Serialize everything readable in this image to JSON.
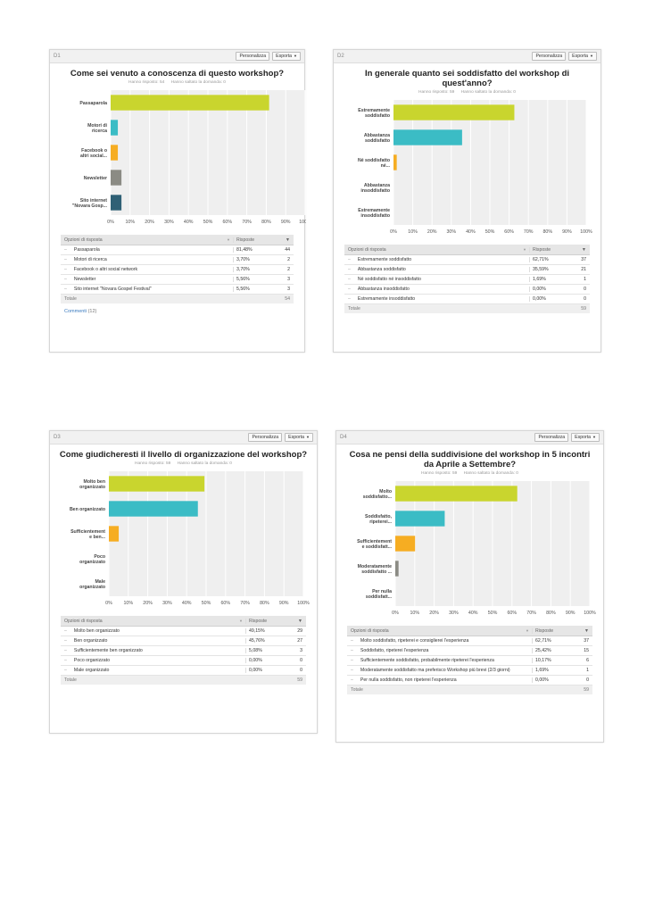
{
  "buttons": {
    "customize": "Personalizza",
    "export": "Esporta"
  },
  "table_labels": {
    "options": "Opzioni di risposta",
    "responses": "Risposte",
    "total": "Totale"
  },
  "axis_ticks": [
    "0%",
    "10%",
    "20%",
    "30%",
    "40%",
    "50%",
    "60%",
    "70%",
    "80%",
    "90%",
    "100%"
  ],
  "panels": [
    {
      "id": "D1",
      "title": "Come sei venuto a conoscenza di questo workshop?",
      "answered": "Hanno risposto: 54",
      "skipped": "Hanno saltato la domanda: 0",
      "comments_label": "Commenti",
      "comments_count": "(12)",
      "total": "54",
      "rows": [
        {
          "label": "Passaparola",
          "pct": "81,48%",
          "count": "44"
        },
        {
          "label": "Motori di ricerca",
          "pct": "3,70%",
          "count": "2"
        },
        {
          "label": "Facebook o altri social network",
          "pct": "3,70%",
          "count": "2"
        },
        {
          "label": "Newsletter",
          "pct": "5,56%",
          "count": "3"
        },
        {
          "label": "Sito internet \"Novara Gospel Festival\"",
          "pct": "5,56%",
          "count": "3"
        }
      ]
    },
    {
      "id": "D2",
      "title": "In generale quanto sei soddisfatto del workshop di quest'anno?",
      "answered": "Hanno risposto: 59",
      "skipped": "Hanno saltato la domanda: 0",
      "total": "59",
      "rows": [
        {
          "label": "Estremamente soddisfatto",
          "pct": "62,71%",
          "count": "37"
        },
        {
          "label": "Abbastanza soddisfatto",
          "pct": "35,59%",
          "count": "21"
        },
        {
          "label": "Né soddisfatto né insoddisfatto",
          "pct": "1,69%",
          "count": "1"
        },
        {
          "label": "Abbastanza insoddisfatto",
          "pct": "0,00%",
          "count": "0"
        },
        {
          "label": "Estremamente insoddisfatto",
          "pct": "0,00%",
          "count": "0"
        }
      ]
    },
    {
      "id": "D3",
      "title": "Come giudicheresti il livello di organizzazione del workshop?",
      "answered": "Hanno risposto: 59",
      "skipped": "Hanno saltato la domanda: 0",
      "total": "59",
      "rows": [
        {
          "label": "Molto ben organizzato",
          "pct": "49,15%",
          "count": "29"
        },
        {
          "label": "Ben organizzato",
          "pct": "45,76%",
          "count": "27"
        },
        {
          "label": "Sufficientemente ben organizzato",
          "pct": "5,08%",
          "count": "3"
        },
        {
          "label": "Poco organizzato",
          "pct": "0,00%",
          "count": "0"
        },
        {
          "label": "Male organizzato",
          "pct": "0,00%",
          "count": "0"
        }
      ]
    },
    {
      "id": "D4",
      "title": "Cosa ne pensi della suddivisione del workshop in 5 incontri da Aprile a Settembre?",
      "answered": "Hanno risposto: 59",
      "skipped": "Hanno saltato la domanda: 0",
      "total": "59",
      "rows": [
        {
          "label": "Molto soddisfatto, ripeterei e consiglierei l'esperienza",
          "pct": "62,71%",
          "count": "37"
        },
        {
          "label": "Soddisfatto, ripeterei l'esperienza",
          "pct": "25,42%",
          "count": "15"
        },
        {
          "label": "Sufficientemente soddisfatto, probabilmente ripeterei l'esperienza",
          "pct": "10,17%",
          "count": "6"
        },
        {
          "label": "Moderatamente soddisfatto ma preferisco Workshop più brevi (2/3 giorni)",
          "pct": "1,69%",
          "count": "1"
        },
        {
          "label": "Per nulla soddisfatto, non ripeterei l'esperienza",
          "pct": "0,00%",
          "count": "0"
        }
      ]
    }
  ],
  "chart_data": [
    {
      "type": "bar",
      "orientation": "horizontal",
      "categories": [
        "Passaparola",
        "Motori di ricerca",
        "Facebook o altri social...",
        "Newsletter",
        "Sito internet \"Novara Gosp..."
      ],
      "values": [
        81.48,
        3.7,
        3.7,
        5.56,
        5.56
      ],
      "colors": [
        "#c9d52e",
        "#3bbcc5",
        "#f6ad22",
        "#8b8b84",
        "#2f6075"
      ],
      "xlim": [
        0,
        100
      ],
      "grid": true
    },
    {
      "type": "bar",
      "orientation": "horizontal",
      "categories": [
        "Estremamente soddisfatto",
        "Abbastanza soddisfatto",
        "Né soddisfatto né...",
        "Abbastanza insoddisfatto",
        "Estremamente insoddisfatto"
      ],
      "values": [
        62.71,
        35.59,
        1.69,
        0,
        0
      ],
      "colors": [
        "#c9d52e",
        "#3bbcc5",
        "#f6ad22",
        "#8b8b84",
        "#2f6075"
      ],
      "xlim": [
        0,
        100
      ],
      "grid": true
    },
    {
      "type": "bar",
      "orientation": "horizontal",
      "categories": [
        "Molto ben organizzato",
        "Ben organizzato",
        "Sufficientement e ben...",
        "Poco organizzato",
        "Male organizzato"
      ],
      "values": [
        49.15,
        45.76,
        5.08,
        0,
        0
      ],
      "colors": [
        "#c9d52e",
        "#3bbcc5",
        "#f6ad22",
        "#8b8b84",
        "#2f6075"
      ],
      "xlim": [
        0,
        100
      ],
      "grid": true
    },
    {
      "type": "bar",
      "orientation": "horizontal",
      "categories": [
        "Molto soddisfatto...",
        "Soddisfatto, ripeterei...",
        "Sufficientement e soddisfatt...",
        "Moderatamente soddisfatto ...",
        "Per nulla soddisfatt..."
      ],
      "values": [
        62.71,
        25.42,
        10.17,
        1.69,
        0
      ],
      "colors": [
        "#c9d52e",
        "#3bbcc5",
        "#f6ad22",
        "#8b8b84",
        "#2f6075"
      ],
      "xlim": [
        0,
        100
      ],
      "grid": true
    }
  ]
}
